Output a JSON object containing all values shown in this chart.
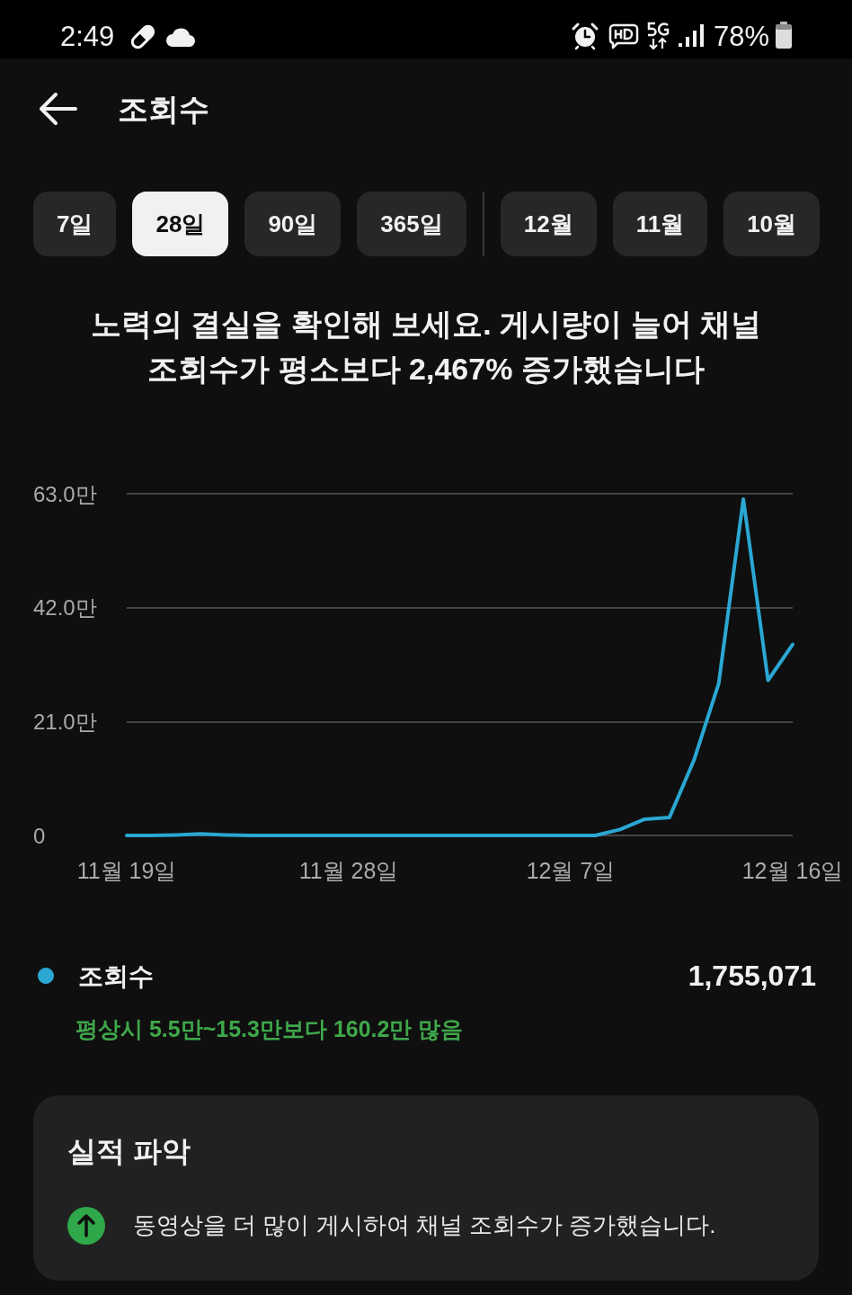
{
  "chart_data": {
    "type": "line",
    "title": "조회수",
    "subtitle": "노력의 결실을 확인해 보세요. 게시량이 늘어 채널 조회수가 평소보다 2,467% 증가했습니다",
    "categories": [
      "11월 19일",
      null,
      null,
      null,
      null,
      null,
      null,
      null,
      null,
      "11월 28일",
      null,
      null,
      null,
      null,
      null,
      null,
      null,
      null,
      "12월 7일",
      null,
      null,
      null,
      null,
      null,
      null,
      null,
      null,
      "12월 16일"
    ],
    "series": [
      {
        "name": "조회수",
        "color": "#2aa7d3",
        "values": [
          0,
          0,
          0.1,
          0.3,
          0.1,
          0,
          0,
          0,
          0,
          0,
          0,
          0,
          0,
          0,
          0,
          0,
          0,
          0,
          0,
          0,
          1.1,
          3.0,
          3.3,
          13.9,
          28.0,
          62.0,
          28.6,
          35.2
        ]
      }
    ],
    "ylim": [
      0,
      63
    ],
    "yticks": [
      0,
      {
        "value": 21,
        "label": "21.0만"
      },
      {
        "value": 42,
        "label": "42.0만"
      },
      {
        "value": 63,
        "label": "63.0만"
      }
    ],
    "grid": "y",
    "legend": "bottom left",
    "annotations": [
      "2:49",
      "78%",
      "7일",
      "28일",
      "90일",
      "365일",
      "12월",
      "11월",
      "10월",
      "1,755,071",
      "평상시 5.5만~15.3만보다 160.2만 많음",
      "실적 파악",
      "동영상을 더 많이 게시하여 채널 조회수가 증가했습니다."
    ]
  }
}
